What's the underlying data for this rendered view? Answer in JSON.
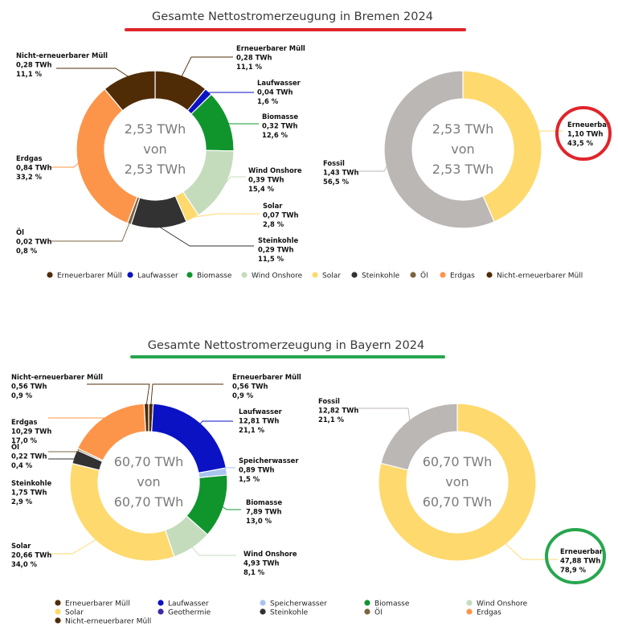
{
  "colors": {
    "erneuerbarer_muell": "#4f2c06",
    "laufwasser": "#0a12c4",
    "speicherwasser": "#a9c4ee",
    "biomasse": "#10952d",
    "wind_onshore": "#c4dcbc",
    "solar": "#fed96d",
    "geothermie": "#3a2aa8",
    "steinkohle": "#323232",
    "oel": "#7e6540",
    "erdgas": "#fc954a",
    "nicht_erneuerbarer_muell": "#4f2c06",
    "fossil": "#bbb7b5",
    "erneuerbar": "#fed96d",
    "bremen_rule": "#e0252b",
    "bayern_rule": "#27a64e",
    "highlight_bremen": "#e0252b",
    "highlight_bayern": "#27a64e"
  },
  "chart_data": [
    {
      "type": "pie",
      "title": "Gesamte Nettostromerzeugung in Bremen 2024",
      "center": [
        "2,53 TWh",
        "von",
        "2,53 TWh"
      ],
      "slices": [
        {
          "key": "erneuerbarer_muell",
          "name": "Erneuerbarer Müll",
          "value": 0.28,
          "value_label": "0,28 TWh",
          "percent": 11.1,
          "percent_label": "11,1 %"
        },
        {
          "key": "laufwasser",
          "name": "Laufwasser",
          "value": 0.04,
          "value_label": "0,04 TWh",
          "percent": 1.6,
          "percent_label": "1,6 %"
        },
        {
          "key": "biomasse",
          "name": "Biomasse",
          "value": 0.32,
          "value_label": "0,32 TWh",
          "percent": 12.6,
          "percent_label": "12,6 %"
        },
        {
          "key": "wind_onshore",
          "name": "Wind Onshore",
          "value": 0.39,
          "value_label": "0,39 TWh",
          "percent": 15.4,
          "percent_label": "15,4 %"
        },
        {
          "key": "solar",
          "name": "Solar",
          "value": 0.07,
          "value_label": "0,07 TWh",
          "percent": 2.8,
          "percent_label": "2,8 %"
        },
        {
          "key": "steinkohle",
          "name": "Steinkohle",
          "value": 0.29,
          "value_label": "0,29 TWh",
          "percent": 11.5,
          "percent_label": "11,5 %"
        },
        {
          "key": "oel",
          "name": "Öl",
          "value": 0.02,
          "value_label": "0,02 TWh",
          "percent": 0.8,
          "percent_label": "0,8 %"
        },
        {
          "key": "erdgas",
          "name": "Erdgas",
          "value": 0.84,
          "value_label": "0,84 TWh",
          "percent": 33.2,
          "percent_label": "33,2 %"
        },
        {
          "key": "nicht_erneuerbarer_muell",
          "name": "Nicht-erneuerbarer Müll",
          "value": 0.28,
          "value_label": "0,28 TWh",
          "percent": 11.1,
          "percent_label": "11,1 %"
        }
      ],
      "legend": [
        "Erneuerbarer Müll",
        "Laufwasser",
        "Biomasse",
        "Wind Onshore",
        "Solar",
        "Steinkohle",
        "Öl",
        "Erdgas",
        "Nicht-erneuerbarer Müll"
      ],
      "legend_placement": "bottom"
    },
    {
      "type": "pie",
      "center": [
        "2,53 TWh",
        "von",
        "2,53 TWh"
      ],
      "slices": [
        {
          "key": "erneuerbar",
          "name": "Erneuerbar",
          "value": 1.1,
          "value_label": "1,10 TWh",
          "percent": 43.5,
          "percent_label": "43,5 %",
          "highlighted": true
        },
        {
          "key": "fossil",
          "name": "Fossil",
          "value": 1.43,
          "value_label": "1,43 TWh",
          "percent": 56.5,
          "percent_label": "56,5 %"
        }
      ]
    },
    {
      "type": "pie",
      "title": "Gesamte Nettostromerzeugung in Bayern 2024",
      "center": [
        "60,70 TWh",
        "von",
        "60,70 TWh"
      ],
      "slices": [
        {
          "key": "erneuerbarer_muell",
          "name": "Erneuerbarer Müll",
          "value": 0.56,
          "value_label": "0,56 TWh",
          "percent": 0.9,
          "percent_label": "0,9 %"
        },
        {
          "key": "laufwasser",
          "name": "Laufwasser",
          "value": 12.81,
          "value_label": "12,81 TWh",
          "percent": 21.1,
          "percent_label": "21,1 %"
        },
        {
          "key": "speicherwasser",
          "name": "Speicherwasser",
          "value": 0.89,
          "value_label": "0,89 TWh",
          "percent": 1.5,
          "percent_label": "1,5 %"
        },
        {
          "key": "biomasse",
          "name": "Biomasse",
          "value": 7.89,
          "value_label": "7,89 TWh",
          "percent": 13.0,
          "percent_label": "13,0 %"
        },
        {
          "key": "wind_onshore",
          "name": "Wind Onshore",
          "value": 4.93,
          "value_label": "4,93 TWh",
          "percent": 8.1,
          "percent_label": "8,1 %"
        },
        {
          "key": "solar",
          "name": "Solar",
          "value": 20.66,
          "value_label": "20,66 TWh",
          "percent": 34.0,
          "percent_label": "34,0 %"
        },
        {
          "key": "steinkohle",
          "name": "Steinkohle",
          "value": 1.75,
          "value_label": "1,75 TWh",
          "percent": 2.9,
          "percent_label": "2,9 %"
        },
        {
          "key": "oel",
          "name": "Öl",
          "value": 0.22,
          "value_label": "0,22 TWh",
          "percent": 0.4,
          "percent_label": "0,4 %"
        },
        {
          "key": "erdgas",
          "name": "Erdgas",
          "value": 10.29,
          "value_label": "10,29 TWh",
          "percent": 17.0,
          "percent_label": "17,0 %"
        },
        {
          "key": "nicht_erneuerbarer_muell",
          "name": "Nicht-erneuerbarer Müll",
          "value": 0.56,
          "value_label": "0,56 TWh",
          "percent": 0.9,
          "percent_label": "0,9 %"
        }
      ],
      "legend": [
        "Erneuerbarer Müll",
        "Laufwasser",
        "Speicherwasser",
        "Biomasse",
        "Wind Onshore",
        "Solar",
        "Geothermie",
        "Steinkohle",
        "Öl",
        "Erdgas",
        "Nicht-erneuerbarer Müll"
      ],
      "legend_keys": [
        "erneuerbarer_muell",
        "laufwasser",
        "speicherwasser",
        "biomasse",
        "wind_onshore",
        "solar",
        "geothermie",
        "steinkohle",
        "oel",
        "erdgas",
        "nicht_erneuerbarer_muell"
      ],
      "legend_placement": "bottom"
    },
    {
      "type": "pie",
      "center": [
        "60,70 TWh",
        "von",
        "60,70 TWh"
      ],
      "slices": [
        {
          "key": "erneuerbar",
          "name": "Erneuerbar",
          "value": 47.88,
          "value_label": "47,88 TWh",
          "percent": 78.9,
          "percent_label": "78,9 %",
          "highlighted": true
        },
        {
          "key": "fossil",
          "name": "Fossil",
          "value": 12.82,
          "value_label": "12,82 TWh",
          "percent": 21.1,
          "percent_label": "21,1 %"
        }
      ]
    }
  ]
}
